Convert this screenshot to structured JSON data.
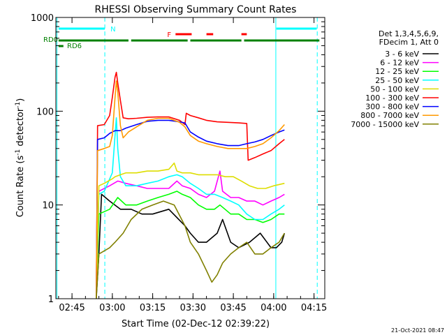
{
  "chart_data": {
    "type": "line",
    "title": "RHESSI Observing Summary Count Rates",
    "xlabel": "Start Time (02-Dec-12 02:39:22)",
    "ylabel_main": "Count Rate (s",
    "ylabel_sup1": "-1",
    "ylabel_mid": " detector",
    "ylabel_sup2": "-1",
    "ylabel_end": ")",
    "y_scale": "log",
    "ylim": [
      1,
      1000
    ],
    "xlim_min": [
      0,
      100
    ],
    "x_ticks": [
      {
        "min": 6,
        "label": "02:45"
      },
      {
        "min": 21,
        "label": "03:00"
      },
      {
        "min": 36,
        "label": "03:15"
      },
      {
        "min": 51,
        "label": "03:30"
      },
      {
        "min": 66,
        "label": "03:45"
      },
      {
        "min": 81,
        "label": "04:00"
      },
      {
        "min": 96,
        "label": "04:15"
      }
    ],
    "y_ticks": [
      {
        "v": 1,
        "label": "1"
      },
      {
        "v": 10,
        "label": "10"
      },
      {
        "v": 100,
        "label": "100"
      },
      {
        "v": 1000,
        "label": "1000"
      }
    ],
    "legend_title_1": "Det 1,3,4,5,6,9,",
    "legend_title_2": "FDecim 1, Att 0",
    "legend_placement": "right",
    "series": [
      {
        "name": "3 - 6 keV",
        "color": "#000000",
        "data": [
          [
            15,
            1
          ],
          [
            16,
            3
          ],
          [
            17,
            13
          ],
          [
            20,
            11
          ],
          [
            24,
            9
          ],
          [
            28,
            9
          ],
          [
            32,
            8
          ],
          [
            36,
            8
          ],
          [
            42,
            9
          ],
          [
            48,
            6
          ],
          [
            50,
            5
          ],
          [
            53,
            4
          ],
          [
            56,
            4
          ],
          [
            60,
            5
          ],
          [
            62,
            7
          ],
          [
            65,
            4
          ],
          [
            68,
            3.5
          ],
          [
            72,
            4
          ],
          [
            76,
            5
          ],
          [
            80,
            3.5
          ],
          [
            82,
            3.5
          ],
          [
            84,
            4
          ],
          [
            85,
            5
          ]
        ]
      },
      {
        "name": "6 - 12 keV",
        "color": "#ff00ff",
        "data": [
          [
            15,
            1
          ],
          [
            16,
            14
          ],
          [
            20,
            16
          ],
          [
            23,
            18
          ],
          [
            26,
            17
          ],
          [
            30,
            16
          ],
          [
            34,
            15
          ],
          [
            38,
            15
          ],
          [
            42,
            15
          ],
          [
            45,
            18
          ],
          [
            47,
            16
          ],
          [
            50,
            15
          ],
          [
            53,
            13
          ],
          [
            56,
            12
          ],
          [
            59,
            14
          ],
          [
            61,
            23
          ],
          [
            62,
            14
          ],
          [
            65,
            12
          ],
          [
            68,
            12
          ],
          [
            71,
            11
          ],
          [
            74,
            11
          ],
          [
            77,
            10
          ],
          [
            80,
            11
          ],
          [
            83,
            12
          ],
          [
            85,
            13
          ]
        ]
      },
      {
        "name": "12 - 25 keV",
        "color": "#00ff00",
        "data": [
          [
            15,
            1
          ],
          [
            16,
            8
          ],
          [
            20,
            9
          ],
          [
            23,
            12
          ],
          [
            26,
            10
          ],
          [
            30,
            10
          ],
          [
            34,
            11
          ],
          [
            38,
            12
          ],
          [
            42,
            13
          ],
          [
            45,
            14
          ],
          [
            47,
            13
          ],
          [
            50,
            12
          ],
          [
            53,
            10
          ],
          [
            56,
            9
          ],
          [
            59,
            9
          ],
          [
            61,
            10
          ],
          [
            65,
            8
          ],
          [
            68,
            8
          ],
          [
            71,
            7
          ],
          [
            74,
            7
          ],
          [
            77,
            6.5
          ],
          [
            80,
            7
          ],
          [
            83,
            8
          ],
          [
            85,
            8
          ]
        ]
      },
      {
        "name": "25 - 50 keV",
        "color": "#00ffff",
        "data": [
          [
            15,
            1
          ],
          [
            16,
            13
          ],
          [
            18,
            14
          ],
          [
            21,
            22
          ],
          [
            22,
            55
          ],
          [
            22.5,
            85
          ],
          [
            23,
            40
          ],
          [
            24,
            20
          ],
          [
            26,
            16
          ],
          [
            30,
            16
          ],
          [
            34,
            17
          ],
          [
            38,
            18
          ],
          [
            42,
            20
          ],
          [
            45,
            21
          ],
          [
            47,
            20
          ],
          [
            50,
            17
          ],
          [
            53,
            15
          ],
          [
            56,
            13
          ],
          [
            59,
            13
          ],
          [
            62,
            12
          ],
          [
            65,
            11
          ],
          [
            68,
            10
          ],
          [
            71,
            8
          ],
          [
            74,
            7
          ],
          [
            77,
            7
          ],
          [
            80,
            8
          ],
          [
            83,
            9
          ],
          [
            85,
            10
          ]
        ]
      },
      {
        "name": "50 - 100 keV",
        "color": "#dddd00",
        "data": [
          [
            15,
            1
          ],
          [
            16,
            16
          ],
          [
            18,
            17
          ],
          [
            21,
            19
          ],
          [
            22,
            20
          ],
          [
            24,
            21
          ],
          [
            26,
            22
          ],
          [
            30,
            22
          ],
          [
            34,
            23
          ],
          [
            38,
            23
          ],
          [
            42,
            24
          ],
          [
            44,
            28
          ],
          [
            45,
            23
          ],
          [
            47,
            22
          ],
          [
            50,
            22
          ],
          [
            53,
            21
          ],
          [
            56,
            21
          ],
          [
            60,
            21
          ],
          [
            63,
            20
          ],
          [
            66,
            20
          ],
          [
            69,
            18
          ],
          [
            72,
            16
          ],
          [
            75,
            15
          ],
          [
            78,
            15
          ],
          [
            81,
            16
          ],
          [
            85,
            17
          ]
        ]
      },
      {
        "name": "100 - 300 keV",
        "color": "#ff0000",
        "data": [
          [
            15,
            1
          ],
          [
            15.5,
            70
          ],
          [
            18,
            72
          ],
          [
            20,
            90
          ],
          [
            21,
            140
          ],
          [
            22,
            230
          ],
          [
            22.5,
            260
          ],
          [
            23,
            200
          ],
          [
            24,
            130
          ],
          [
            25,
            85
          ],
          [
            27,
            83
          ],
          [
            30,
            84
          ],
          [
            34,
            86
          ],
          [
            38,
            87
          ],
          [
            42,
            87
          ],
          [
            46,
            80
          ],
          [
            48,
            72
          ],
          [
            48.5,
            95
          ],
          [
            50,
            90
          ],
          [
            53,
            85
          ],
          [
            56,
            80
          ],
          [
            60,
            77
          ],
          [
            64,
            76
          ],
          [
            68,
            75
          ],
          [
            71,
            74
          ],
          [
            71.5,
            30
          ],
          [
            74,
            32
          ],
          [
            77,
            35
          ],
          [
            80,
            38
          ],
          [
            83,
            45
          ],
          [
            85,
            50
          ]
        ]
      },
      {
        "name": "300 - 800 keV",
        "color": "#0000ff",
        "data": [
          [
            15,
            1
          ],
          [
            15.5,
            50
          ],
          [
            18,
            52
          ],
          [
            20,
            58
          ],
          [
            22,
            62
          ],
          [
            24,
            62
          ],
          [
            26,
            66
          ],
          [
            30,
            72
          ],
          [
            34,
            78
          ],
          [
            38,
            80
          ],
          [
            42,
            80
          ],
          [
            46,
            77
          ],
          [
            48,
            75
          ],
          [
            50,
            60
          ],
          [
            53,
            53
          ],
          [
            56,
            48
          ],
          [
            60,
            45
          ],
          [
            64,
            43
          ],
          [
            68,
            43
          ],
          [
            71,
            45
          ],
          [
            74,
            47
          ],
          [
            77,
            50
          ],
          [
            80,
            55
          ],
          [
            83,
            60
          ],
          [
            85,
            63
          ]
        ]
      },
      {
        "name": "800 - 7000 keV",
        "color": "#ff9900",
        "data": [
          [
            15,
            1
          ],
          [
            15.5,
            38
          ],
          [
            18,
            40
          ],
          [
            20,
            42
          ],
          [
            21,
            55
          ],
          [
            22,
            140
          ],
          [
            22.5,
            210
          ],
          [
            23,
            160
          ],
          [
            24,
            70
          ],
          [
            25,
            52
          ],
          [
            27,
            60
          ],
          [
            30,
            68
          ],
          [
            34,
            80
          ],
          [
            38,
            84
          ],
          [
            42,
            84
          ],
          [
            46,
            76
          ],
          [
            48,
            68
          ],
          [
            50,
            55
          ],
          [
            53,
            48
          ],
          [
            56,
            45
          ],
          [
            60,
            42
          ],
          [
            64,
            40
          ],
          [
            68,
            40
          ],
          [
            71,
            40
          ],
          [
            74,
            42
          ],
          [
            77,
            45
          ],
          [
            80,
            52
          ],
          [
            83,
            62
          ],
          [
            85,
            72
          ]
        ]
      },
      {
        "name": "7000 - 15000 keV",
        "color": "#808000",
        "data": [
          [
            15,
            1
          ],
          [
            16,
            3
          ],
          [
            20,
            3.5
          ],
          [
            22,
            4
          ],
          [
            25,
            5
          ],
          [
            28,
            7
          ],
          [
            32,
            9
          ],
          [
            36,
            10
          ],
          [
            40,
            11
          ],
          [
            44,
            10
          ],
          [
            48,
            6
          ],
          [
            50,
            4
          ],
          [
            53,
            3
          ],
          [
            56,
            2
          ],
          [
            58,
            1.5
          ],
          [
            60,
            1.8
          ],
          [
            62,
            2.4
          ],
          [
            65,
            3
          ],
          [
            68,
            3.5
          ],
          [
            71,
            4
          ],
          [
            74,
            3
          ],
          [
            77,
            3
          ],
          [
            80,
            3.5
          ],
          [
            83,
            4
          ],
          [
            85,
            5
          ]
        ]
      }
    ],
    "state_bars": [
      {
        "label": "N",
        "color": "#00ffff",
        "segments": [
          [
            1,
            18.2
          ]
        ]
      },
      {
        "label": "",
        "color": "#00ffff",
        "segments": [
          [
            82,
            97
          ]
        ]
      },
      {
        "label": "F",
        "color": "#ff0000",
        "segments": [
          [
            44.5,
            50.5
          ],
          [
            56,
            58.5
          ],
          [
            69,
            71
          ]
        ]
      },
      {
        "label": "RD0",
        "color": "#008000",
        "segments": [
          [
            1,
            27
          ]
        ]
      },
      {
        "label": "",
        "color": "#008000",
        "segments": [
          [
            28,
            49
          ],
          [
            50,
            69
          ],
          [
            70,
            98
          ]
        ]
      },
      {
        "label": "RD6",
        "color": "#008000",
        "segments": [
          [
            1,
            2.8
          ]
        ]
      }
    ],
    "vlines": [
      {
        "min": 0.4,
        "style": "solid",
        "color": "#00ffff"
      },
      {
        "min": 18.2,
        "style": "dashed",
        "color": "#00ffff"
      },
      {
        "min": 81.8,
        "style": "solid",
        "color": "#00ffff"
      },
      {
        "min": 97.2,
        "style": "dashed",
        "color": "#00ffff"
      }
    ],
    "timestamp": "21-Oct-2021 08:47"
  }
}
